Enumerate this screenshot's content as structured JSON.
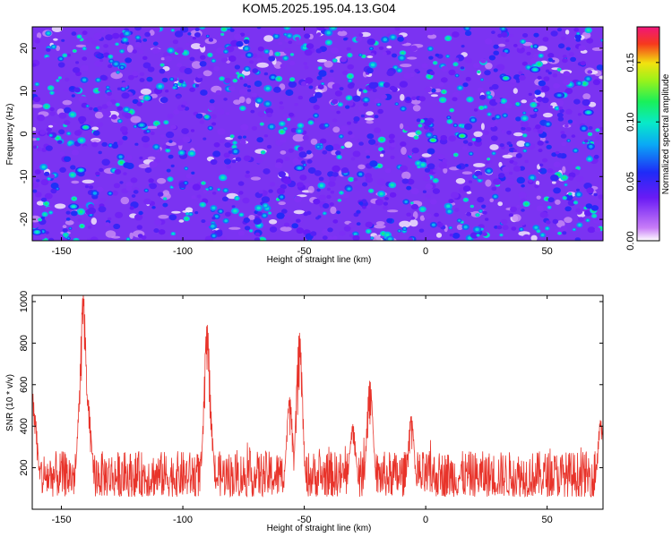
{
  "title": "KOM5.2025.195.04.13.G04",
  "chart_data": [
    {
      "type": "heatmap",
      "xlabel": "Height of straight line (km)",
      "ylabel": "Frequency (Hz)",
      "xlim": [
        -162,
        73
      ],
      "ylim": [
        -25,
        25
      ],
      "xticks": [
        -150,
        -100,
        -50,
        0,
        50
      ],
      "yticks": [
        -20,
        -10,
        0,
        10,
        20
      ],
      "colorbar": {
        "label": "Normalized spectral amplitude",
        "range": [
          0.0,
          0.18
        ],
        "ticks": [
          0.0,
          0.05,
          0.1,
          0.15
        ],
        "tick_labels": [
          "0.00",
          "0.05",
          "0.10",
          "0.15"
        ],
        "colormap": "rainbow (white-violet-blue-cyan-green-yellow-red-pink)"
      },
      "hotspots": [
        {
          "x": 3,
          "y": -1.5,
          "value": 0.12
        },
        {
          "x": 15,
          "y": -0.5,
          "value": 0.12
        },
        {
          "x": -140,
          "y": 1.5,
          "value": 0.11
        },
        {
          "x": -142,
          "y": -8.5,
          "value": 0.1
        },
        {
          "x": -145,
          "y": -17,
          "value": 0.1
        },
        {
          "x": -160,
          "y": -23,
          "value": 0.1
        },
        {
          "x": 33,
          "y": 13,
          "value": 0.11
        },
        {
          "x": 45,
          "y": 15,
          "value": 0.1
        },
        {
          "x": 67,
          "y": 5,
          "value": 0.1
        },
        {
          "x": -117,
          "y": 2,
          "value": 0.09
        },
        {
          "x": -52,
          "y": -8,
          "value": 0.09
        },
        {
          "x": 55,
          "y": 9,
          "value": 0.08
        }
      ]
    },
    {
      "type": "line",
      "xlabel": "Height of straight line (km)",
      "ylabel": "SNR (10 * v/v)",
      "xlim": [
        -162,
        73
      ],
      "ylim": [
        0,
        1030
      ],
      "xticks": [
        -150,
        -100,
        -50,
        0,
        50
      ],
      "yticks": [
        200,
        400,
        600,
        800,
        1000
      ],
      "color": "#e8332a",
      "baseline": [
        60,
        280
      ],
      "peaks": [
        {
          "x": -162,
          "y": 570
        },
        {
          "x": -161,
          "y": 460
        },
        {
          "x": -142,
          "y": 620
        },
        {
          "x": -141,
          "y": 1040
        },
        {
          "x": -139,
          "y": 530
        },
        {
          "x": -90,
          "y": 890
        },
        {
          "x": -89,
          "y": 530
        },
        {
          "x": -52,
          "y": 850
        },
        {
          "x": -56,
          "y": 540
        },
        {
          "x": -30,
          "y": 410
        },
        {
          "x": -23,
          "y": 620
        },
        {
          "x": -6,
          "y": 450
        },
        {
          "x": 72,
          "y": 430
        }
      ]
    }
  ]
}
